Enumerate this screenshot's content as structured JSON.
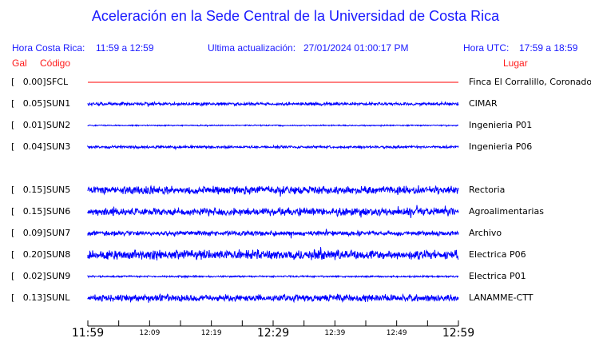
{
  "title": "Aceleración en la Sede Central de la Universidad de Costa Rica",
  "header": {
    "cr_label": "Hora Costa Rica:",
    "cr_range": "11:59 a 12:59",
    "update_label": "Ultima actualización:",
    "update_value": "27/01/2024 01:00:17 PM",
    "utc_label": "Hora UTC:",
    "utc_range": "17:59 a 18:59",
    "gal": "Gal",
    "codigo": "Código",
    "lugar": "Lugar"
  },
  "colors": {
    "trace": "#0000ff",
    "inactive": "#ff0000",
    "header": "#1a1aff",
    "label": "#ff1a1a"
  },
  "chart_data": {
    "type": "line",
    "x_ticks": [
      "11:59",
      "12:09",
      "12:19",
      "12:29",
      "12:39",
      "12:49",
      "12:59"
    ],
    "stations": [
      {
        "gal": "[   0.00]",
        "code": "SFCL",
        "place": "Finca El Corralillo, Coronado",
        "pga": 0.0,
        "color": "#ff0000"
      },
      {
        "gal": "[   0.05]",
        "code": "SUN1",
        "place": "CIMAR",
        "pga": 0.05
      },
      {
        "gal": "[   0.01]",
        "code": "SUN2",
        "place": "Ingenieria P01",
        "pga": 0.01
      },
      {
        "gal": "[   0.04]",
        "code": "SUN3",
        "place": "Ingenieria P06",
        "pga": 0.04
      },
      {
        "gal": "[   0.15]",
        "code": "SUN5",
        "place": "Rectoria",
        "pga": 0.15
      },
      {
        "gal": "[   0.15]",
        "code": "SUN6",
        "place": "Agroalimentarias",
        "pga": 0.15
      },
      {
        "gal": "[   0.09]",
        "code": "SUN7",
        "place": "Archivo",
        "pga": 0.09
      },
      {
        "gal": "[   0.20]",
        "code": "SUN8",
        "place": "Electrica P06",
        "pga": 0.2
      },
      {
        "gal": "[   0.02]",
        "code": "SUN9",
        "place": "Electrica P01",
        "pga": 0.02
      },
      {
        "gal": "[   0.13]",
        "code": "SUNL",
        "place": "LANAMME-CTT",
        "pga": 0.13
      }
    ]
  }
}
